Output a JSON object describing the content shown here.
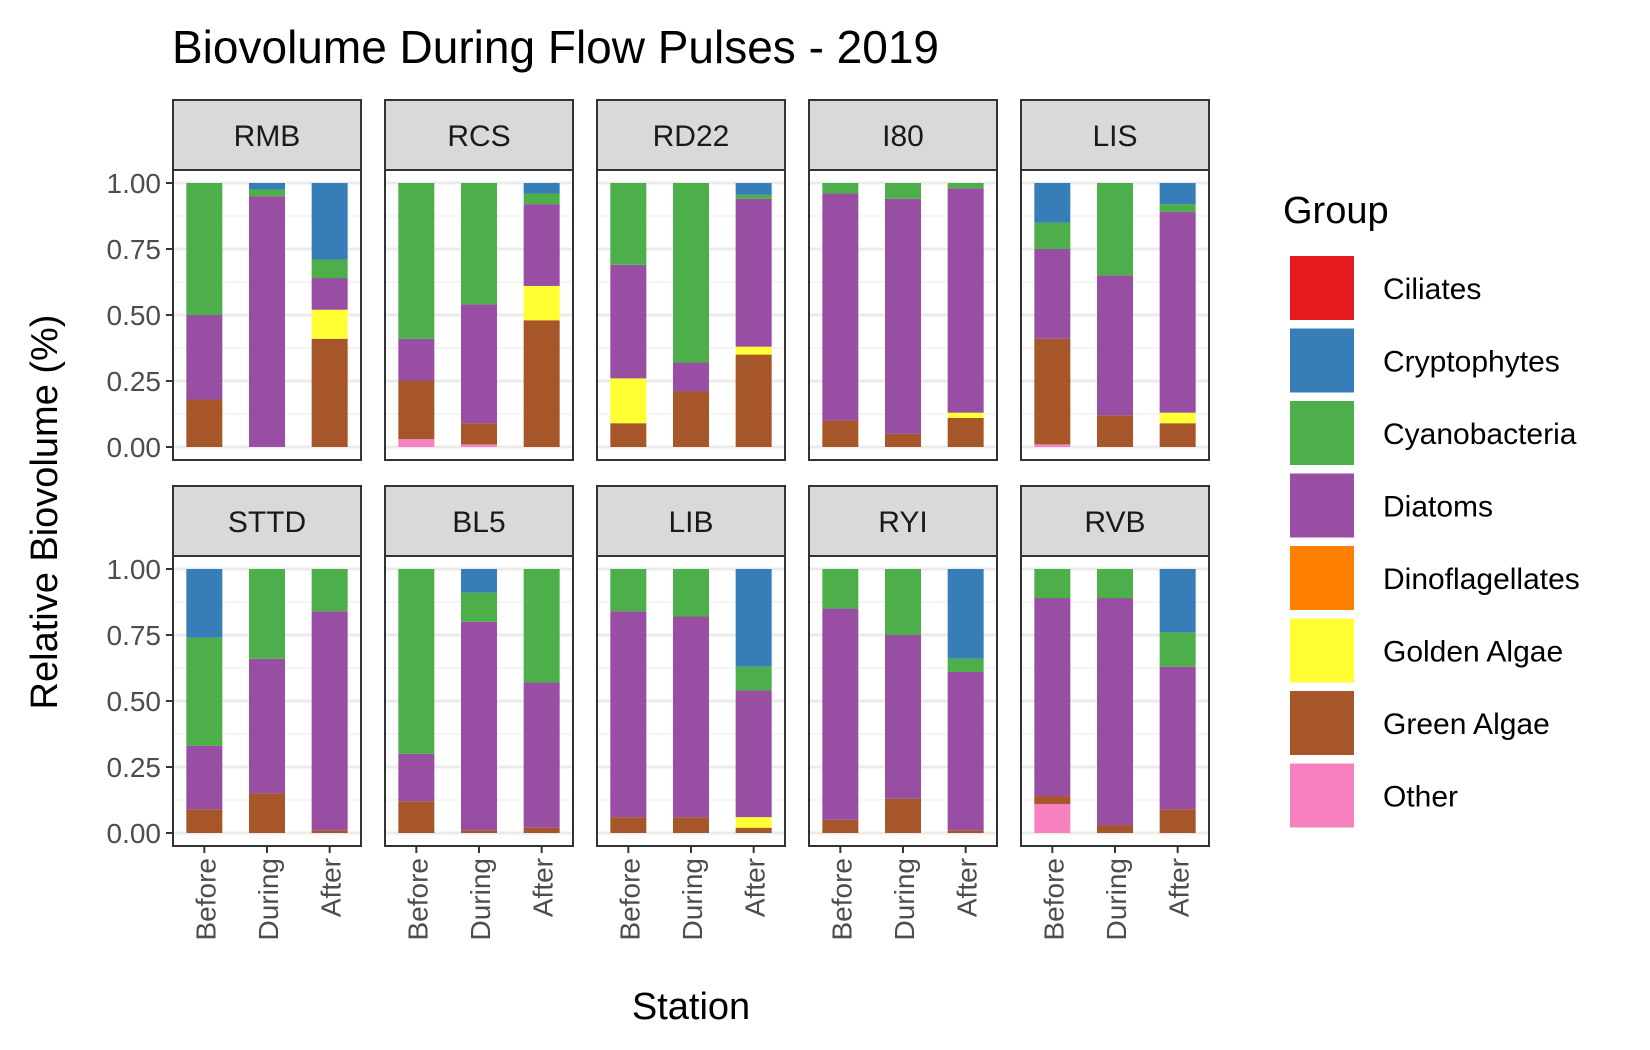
{
  "chart_data": {
    "type": "bar",
    "stacked": true,
    "faceted": true,
    "title": "Biovolume During Flow Pulses - 2019",
    "xlabel": "Station",
    "ylabel": "Relative Biovolume (%)",
    "ylim": [
      0,
      1
    ],
    "y_ticks": [
      "0.00",
      "0.25",
      "0.50",
      "0.75",
      "1.00"
    ],
    "y_tick_values": [
      0,
      0.25,
      0.5,
      0.75,
      1.0
    ],
    "categories": [
      "Before",
      "During",
      "After"
    ],
    "grid": true,
    "legend": {
      "title": "Group",
      "position": "right",
      "entries": [
        "Ciliates",
        "Cryptophytes",
        "Cyanobacteria",
        "Diatoms",
        "Dinoflagellates",
        "Golden Algae",
        "Green Algae",
        "Other"
      ]
    },
    "colors": {
      "Ciliates": "#e41a1c",
      "Cryptophytes": "#377eb8",
      "Cyanobacteria": "#4daf4a",
      "Diatoms": "#984ea3",
      "Dinoflagellates": "#ff7f00",
      "Golden Algae": "#ffff33",
      "Green Algae": "#a65628",
      "Other": "#f781bf"
    },
    "panels": [
      {
        "station": "RMB",
        "bars": {
          "Before": {
            "Other": 0,
            "Green Algae": 0.18,
            "Golden Algae": 0,
            "Diatoms": 0.32,
            "Cyanobacteria": 0.5,
            "Cryptophytes": 0
          },
          "During": {
            "Other": 0,
            "Green Algae": 0,
            "Golden Algae": 0,
            "Diatoms": 0.95,
            "Cyanobacteria": 0.025,
            "Cryptophytes": 0.025
          },
          "After": {
            "Other": 0,
            "Green Algae": 0.41,
            "Golden Algae": 0.11,
            "Diatoms": 0.12,
            "Cyanobacteria": 0.07,
            "Cryptophytes": 0.29
          }
        }
      },
      {
        "station": "RCS",
        "bars": {
          "Before": {
            "Other": 0.03,
            "Green Algae": 0.22,
            "Golden Algae": 0,
            "Diatoms": 0.16,
            "Cyanobacteria": 0.59,
            "Cryptophytes": 0
          },
          "During": {
            "Other": 0.01,
            "Green Algae": 0.08,
            "Golden Algae": 0,
            "Diatoms": 0.45,
            "Cyanobacteria": 0.46,
            "Cryptophytes": 0
          },
          "After": {
            "Other": 0,
            "Green Algae": 0.48,
            "Golden Algae": 0.13,
            "Diatoms": 0.31,
            "Cyanobacteria": 0.04,
            "Cryptophytes": 0.04
          }
        }
      },
      {
        "station": "RD22",
        "bars": {
          "Before": {
            "Other": 0,
            "Green Algae": 0.09,
            "Golden Algae": 0.17,
            "Diatoms": 0.43,
            "Cyanobacteria": 0.31,
            "Cryptophytes": 0
          },
          "During": {
            "Other": 0,
            "Green Algae": 0.21,
            "Golden Algae": 0,
            "Diatoms": 0.11,
            "Cyanobacteria": 0.68,
            "Cryptophytes": 0
          },
          "After": {
            "Other": 0,
            "Green Algae": 0.35,
            "Golden Algae": 0.03,
            "Diatoms": 0.56,
            "Cyanobacteria": 0.015,
            "Cryptophytes": 0.045
          }
        }
      },
      {
        "station": "I80",
        "bars": {
          "Before": {
            "Other": 0,
            "Green Algae": 0.1,
            "Golden Algae": 0,
            "Diatoms": 0.86,
            "Cyanobacteria": 0.04,
            "Cryptophytes": 0
          },
          "During": {
            "Other": 0,
            "Green Algae": 0.05,
            "Golden Algae": 0,
            "Diatoms": 0.89,
            "Cyanobacteria": 0.06,
            "Cryptophytes": 0
          },
          "After": {
            "Other": 0,
            "Green Algae": 0.11,
            "Golden Algae": 0.02,
            "Diatoms": 0.85,
            "Cyanobacteria": 0.02,
            "Cryptophytes": 0
          }
        }
      },
      {
        "station": "LIS",
        "bars": {
          "Before": {
            "Other": 0.01,
            "Green Algae": 0.4,
            "Golden Algae": 0,
            "Diatoms": 0.34,
            "Cyanobacteria": 0.1,
            "Cryptophytes": 0.15
          },
          "During": {
            "Other": 0,
            "Green Algae": 0.12,
            "Golden Algae": 0,
            "Diatoms": 0.53,
            "Cyanobacteria": 0.35,
            "Cryptophytes": 0
          },
          "After": {
            "Other": 0,
            "Green Algae": 0.09,
            "Golden Algae": 0.04,
            "Diatoms": 0.76,
            "Cyanobacteria": 0.03,
            "Cryptophytes": 0.08
          }
        }
      },
      {
        "station": "STTD",
        "bars": {
          "Before": {
            "Other": 0,
            "Green Algae": 0.09,
            "Golden Algae": 0,
            "Diatoms": 0.24,
            "Cyanobacteria": 0.41,
            "Cryptophytes": 0.26
          },
          "During": {
            "Other": 0,
            "Green Algae": 0.15,
            "Golden Algae": 0,
            "Diatoms": 0.51,
            "Cyanobacteria": 0.34,
            "Cryptophytes": 0
          },
          "After": {
            "Other": 0,
            "Green Algae": 0.01,
            "Golden Algae": 0,
            "Diatoms": 0.83,
            "Cyanobacteria": 0.16,
            "Cryptophytes": 0
          }
        }
      },
      {
        "station": "BL5",
        "bars": {
          "Before": {
            "Other": 0,
            "Green Algae": 0.12,
            "Golden Algae": 0,
            "Diatoms": 0.18,
            "Cyanobacteria": 0.7,
            "Cryptophytes": 0
          },
          "During": {
            "Other": 0,
            "Green Algae": 0.01,
            "Golden Algae": 0,
            "Diatoms": 0.79,
            "Cyanobacteria": 0.11,
            "Cryptophytes": 0.09
          },
          "After": {
            "Other": 0,
            "Green Algae": 0.02,
            "Golden Algae": 0,
            "Diatoms": 0.55,
            "Cyanobacteria": 0.43,
            "Cryptophytes": 0
          }
        }
      },
      {
        "station": "LIB",
        "bars": {
          "Before": {
            "Other": 0,
            "Green Algae": 0.06,
            "Golden Algae": 0,
            "Diatoms": 0.78,
            "Cyanobacteria": 0.16,
            "Cryptophytes": 0
          },
          "During": {
            "Other": 0,
            "Green Algae": 0.06,
            "Golden Algae": 0,
            "Diatoms": 0.76,
            "Cyanobacteria": 0.18,
            "Cryptophytes": 0
          },
          "After": {
            "Other": 0,
            "Green Algae": 0.02,
            "Golden Algae": 0.04,
            "Diatoms": 0.48,
            "Cyanobacteria": 0.09,
            "Cryptophytes": 0.37
          }
        }
      },
      {
        "station": "RYI",
        "bars": {
          "Before": {
            "Other": 0,
            "Green Algae": 0.05,
            "Golden Algae": 0,
            "Diatoms": 0.8,
            "Cyanobacteria": 0.15,
            "Cryptophytes": 0
          },
          "During": {
            "Other": 0,
            "Green Algae": 0.13,
            "Golden Algae": 0,
            "Diatoms": 0.62,
            "Cyanobacteria": 0.25,
            "Cryptophytes": 0
          },
          "After": {
            "Other": 0,
            "Green Algae": 0.01,
            "Golden Algae": 0,
            "Diatoms": 0.6,
            "Cyanobacteria": 0.05,
            "Cryptophytes": 0.34
          }
        }
      },
      {
        "station": "RVB",
        "bars": {
          "Before": {
            "Other": 0.11,
            "Green Algae": 0.03,
            "Golden Algae": 0,
            "Diatoms": 0.75,
            "Cyanobacteria": 0.11,
            "Cryptophytes": 0
          },
          "During": {
            "Other": 0,
            "Green Algae": 0.03,
            "Golden Algae": 0,
            "Diatoms": 0.86,
            "Cyanobacteria": 0.11,
            "Cryptophytes": 0
          },
          "After": {
            "Other": 0,
            "Green Algae": 0.09,
            "Golden Algae": 0,
            "Diatoms": 0.54,
            "Cyanobacteria": 0.13,
            "Cryptophytes": 0.24
          }
        }
      }
    ]
  }
}
